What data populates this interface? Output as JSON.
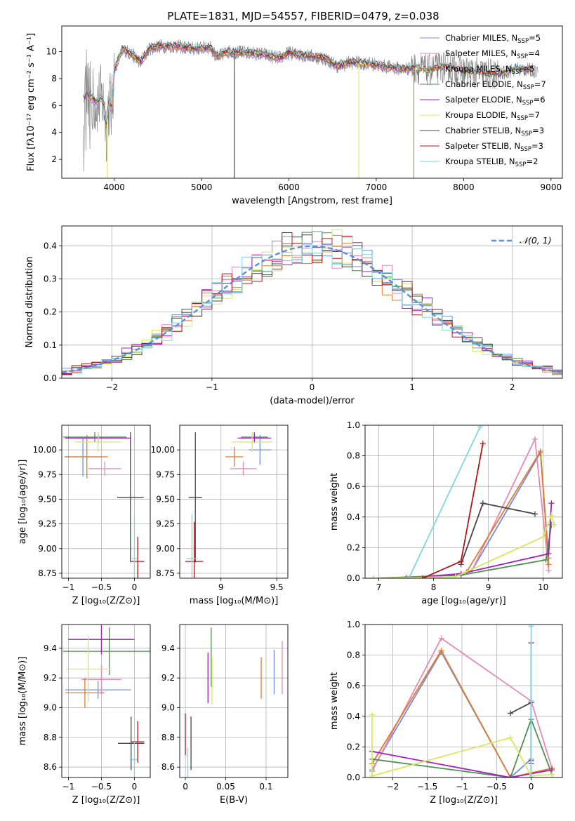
{
  "title": "PLATE=1831, MJD=54557, FIBERID=0479, z=0.038",
  "colors": {
    "Chabrier MILES": "#6f8fe8",
    "Salpeter MILES": "#e68ab8",
    "Kroupa MILES": "#e07b2a",
    "Chabrier ELODIE": "#4f8f4f",
    "Salpeter ELODIE": "#a020c0",
    "Kroupa ELODIE": "#d8e85a",
    "Chabrier STELIB": "#474747",
    "Salpeter STELIB": "#b01818",
    "Kroupa STELIB": "#7dd8e0",
    "gauss": "#5a8ed8"
  },
  "chart_data": [
    {
      "id": "spectrum",
      "type": "line",
      "xlabel": "wavelength [Angstrom, rest frame]",
      "ylabel": "Flux [fλ10⁻¹⁷ erg cm⁻² s⁻¹ A⁻¹]",
      "xlim": [
        3400,
        9130
      ],
      "ylim": [
        0.6,
        11.9
      ],
      "xticks": [
        4000,
        5000,
        6000,
        7000,
        8000,
        9000
      ],
      "yticks": [
        2,
        4,
        6,
        8,
        10
      ],
      "legend_position": "top-right",
      "legend": [
        {
          "label": "Chabrier MILES, N",
          "sub": "SSP",
          "eq": "=5",
          "color": "Chabrier MILES"
        },
        {
          "label": "Salpeter MILES, N",
          "sub": "SSP",
          "eq": "=4",
          "color": "Salpeter MILES"
        },
        {
          "label": "Kroupa MILES, N",
          "sub": "SSP",
          "eq": "=5",
          "color": "Kroupa MILES"
        },
        {
          "label": "Chabrier ELODIE, N",
          "sub": "SSP",
          "eq": "=7",
          "color": "Chabrier ELODIE"
        },
        {
          "label": "Salpeter ELODIE, N",
          "sub": "SSP",
          "eq": "=6",
          "color": "Salpeter ELODIE"
        },
        {
          "label": "Kroupa ELODIE, N",
          "sub": "SSP",
          "eq": "=7",
          "color": "Kroupa ELODIE"
        },
        {
          "label": "Chabrier STELIB, N",
          "sub": "SSP",
          "eq": "=3",
          "color": "Chabrier STELIB"
        },
        {
          "label": "Salpeter STELIB, N",
          "sub": "SSP",
          "eq": "=3",
          "color": "Salpeter STELIB"
        },
        {
          "label": "Kroupa STELIB, N",
          "sub": "SSP",
          "eq": "=2",
          "color": "Kroupa STELIB"
        }
      ],
      "model_x": [
        3650,
        3700,
        3750,
        3800,
        3850,
        3890,
        3910,
        3930,
        3950,
        3970,
        4000,
        4100,
        4200,
        4300,
        4400,
        4500,
        4700,
        4900,
        5100,
        5175,
        5300,
        5500,
        5700,
        5890,
        6000,
        6200,
        6400,
        6563,
        6700,
        6900,
        7100,
        7300,
        7420,
        7600,
        7800,
        8000,
        8200,
        8400,
        8600,
        8800
      ],
      "model_y": [
        6.6,
        6.9,
        6.5,
        6.2,
        6.6,
        5.9,
        4.2,
        5.8,
        6.4,
        5.4,
        8.6,
        10.2,
        9.8,
        9.2,
        10.2,
        10.4,
        10.4,
        10.2,
        10.3,
        9.6,
        10.0,
        9.9,
        9.8,
        9.5,
        9.9,
        9.7,
        9.5,
        8.9,
        9.2,
        9.1,
        8.9,
        8.7,
        8.8,
        8.6,
        8.9,
        8.5,
        8.4,
        8.3,
        8.7,
        8.6
      ],
      "data_cutoff": 8850,
      "drops": [
        {
          "x": 3920,
          "series": "Kroupa ELODIE"
        },
        {
          "x": 5375,
          "series": "Chabrier STELIB"
        },
        {
          "x": 6800,
          "series": "Kroupa ELODIE"
        },
        {
          "x": 7430,
          "series": "Kroupa MILES"
        }
      ]
    },
    {
      "id": "residuals",
      "type": "histogram",
      "xlabel": "(data-model)/error",
      "ylabel": "Normed distribution",
      "xlim": [
        -2.5,
        2.5
      ],
      "ylim": [
        0,
        0.46
      ],
      "xticks": [
        -2,
        -1,
        0,
        1,
        2
      ],
      "yticks": [
        0.0,
        0.1,
        0.2,
        0.3,
        0.4
      ],
      "bin_width": 0.1,
      "legend_position": "top-right",
      "gauss_label": "𝒩(0, 1)"
    },
    {
      "id": "age_vs_Z",
      "type": "errorbar",
      "xlabel": "Z [log₁₀(Z/Z⊙)]",
      "ylabel": "age  [log₁₀(age/yr)]",
      "xlim": [
        -1.1,
        0.24
      ],
      "ylim": [
        8.7,
        10.25
      ],
      "xticks": [
        -1.0,
        -0.5,
        0.0
      ],
      "yticks": [
        8.75,
        9.0,
        9.25,
        9.5,
        9.75,
        10.0
      ],
      "points": [
        {
          "series": "Chabrier MILES",
          "x": -0.78,
          "xerr": 0.28,
          "y": 9.93,
          "yerr": 0.2
        },
        {
          "series": "Salpeter MILES",
          "x": -0.45,
          "xerr": 0.25,
          "y": 9.81,
          "yerr": 0.07
        },
        {
          "series": "Kroupa MILES",
          "x": -0.72,
          "xerr": 0.32,
          "y": 9.93,
          "yerr": 0.22
        },
        {
          "series": "Chabrier ELODIE",
          "x": -0.6,
          "xerr": 0.48,
          "y": 10.13,
          "yerr": 0.05
        },
        {
          "series": "Salpeter ELODIE",
          "x": -0.55,
          "xerr": 0.5,
          "y": 10.12,
          "yerr": 0.05
        },
        {
          "series": "Kroupa ELODIE",
          "x": -0.55,
          "xerr": 0.35,
          "y": 10.08,
          "yerr": 0.1
        },
        {
          "series": "Chabrier STELIB",
          "x": -0.06,
          "xerr": 0.2,
          "y": 9.52,
          "yerr": 0.66
        },
        {
          "series": "Salpeter STELIB",
          "x": 0.05,
          "xerr": 0.1,
          "y": 8.87,
          "yerr": 0.25
        },
        {
          "series": "Kroupa STELIB",
          "x": 0.0,
          "xerr": 0.04,
          "y": 8.9,
          "yerr": 0.45
        }
      ]
    },
    {
      "id": "age_vs_mass",
      "type": "errorbar",
      "xlabel": "mass [log₁₀(M/M⊙)]",
      "ylabel": "",
      "xlim": [
        8.63,
        9.6
      ],
      "ylim": [
        8.7,
        10.25
      ],
      "xticks": [
        9.0,
        9.5
      ],
      "yticks": [
        8.75,
        9.0,
        9.25,
        9.5,
        9.75,
        10.0
      ],
      "points": [
        {
          "series": "Chabrier MILES",
          "x": 9.35,
          "xerr": 0.1,
          "y": 10.0,
          "yerr": 0.15
        },
        {
          "series": "Salpeter MILES",
          "x": 9.2,
          "xerr": 0.12,
          "y": 9.81,
          "yerr": 0.07
        },
        {
          "series": "Kroupa MILES",
          "x": 9.12,
          "xerr": 0.08,
          "y": 9.93,
          "yerr": 0.1
        },
        {
          "series": "Chabrier ELODIE",
          "x": 9.3,
          "xerr": 0.12,
          "y": 10.13,
          "yerr": 0.05
        },
        {
          "series": "Salpeter ELODIE",
          "x": 9.3,
          "xerr": 0.15,
          "y": 10.12,
          "yerr": 0.05
        },
        {
          "series": "Kroupa ELODIE",
          "x": 9.28,
          "xerr": 0.18,
          "y": 10.08,
          "yerr": 0.1
        },
        {
          "series": "Chabrier STELIB",
          "x": 8.77,
          "xerr": 0.06,
          "y": 9.52,
          "yerr": 0.66
        },
        {
          "series": "Salpeter STELIB",
          "x": 8.76,
          "xerr": 0.08,
          "y": 8.87,
          "yerr": 0.4
        },
        {
          "series": "Kroupa STELIB",
          "x": 8.74,
          "xerr": 0.05,
          "y": 8.9,
          "yerr": 0.45
        }
      ]
    },
    {
      "id": "weight_vs_age",
      "type": "line",
      "xlabel": "age  [log₁₀(age/yr)]",
      "ylabel": "mass weight",
      "xlim": [
        6.75,
        10.35
      ],
      "ylim": [
        0,
        1
      ],
      "xticks": [
        7,
        8,
        9,
        10
      ],
      "yticks": [
        0.0,
        0.2,
        0.4,
        0.6,
        0.8,
        1.0
      ],
      "series": [
        {
          "series": "Chabrier MILES",
          "x": [
            8.7,
            9.95,
            10.1
          ],
          "y": [
            0.05,
            0.82,
            0.13
          ]
        },
        {
          "series": "Salpeter MILES",
          "x": [
            8.7,
            9.85,
            10.1
          ],
          "y": [
            0.05,
            0.91,
            0.05
          ]
        },
        {
          "series": "Kroupa MILES",
          "x": [
            8.6,
            9.95,
            10.1
          ],
          "y": [
            0.04,
            0.83,
            0.09
          ]
        },
        {
          "series": "Chabrier ELODIE",
          "x": [
            6.9,
            8.5,
            10.05,
            10.15
          ],
          "y": [
            0.0,
            0.02,
            0.12,
            0.35
          ]
        },
        {
          "series": "Salpeter ELODIE",
          "x": [
            7.5,
            8.5,
            10.1,
            10.15
          ],
          "y": [
            0.0,
            0.03,
            0.16,
            0.49
          ]
        },
        {
          "series": "Kroupa ELODIE",
          "x": [
            6.9,
            8.4,
            10.0,
            10.15,
            10.2
          ],
          "y": [
            0.0,
            0.01,
            0.27,
            0.41,
            0.35
          ]
        },
        {
          "series": "Chabrier STELIB",
          "x": [
            8.5,
            8.9,
            9.85
          ],
          "y": [
            0.09,
            0.49,
            0.42
          ]
        },
        {
          "series": "Salpeter STELIB",
          "x": [
            7.8,
            8.5,
            8.9
          ],
          "y": [
            0.0,
            0.11,
            0.88
          ]
        },
        {
          "series": "Kroupa STELIB",
          "x": [
            7.55,
            8.85
          ],
          "y": [
            0.0,
            0.99
          ]
        }
      ]
    },
    {
      "id": "mass_vs_Z",
      "type": "errorbar",
      "xlabel": "Z [log₁₀(Z/Z⊙)]",
      "ylabel": "mass [log₁₀(M/M⊙)]",
      "xlim": [
        -1.1,
        0.24
      ],
      "ylim": [
        8.53,
        9.56
      ],
      "xticks": [
        -1.0,
        -0.5,
        0.0
      ],
      "yticks": [
        8.6,
        8.8,
        9.0,
        9.2,
        9.4
      ],
      "points": [
        {
          "series": "Chabrier MILES",
          "x": -0.55,
          "xerr": 0.5,
          "y": 9.12,
          "yerr": 0.06
        },
        {
          "series": "Salpeter MILES",
          "x": -0.5,
          "xerr": 0.3,
          "y": 9.19,
          "yerr": 0.1
        },
        {
          "series": "Kroupa MILES",
          "x": -0.75,
          "xerr": 0.3,
          "y": 9.1,
          "yerr": 0.1
        },
        {
          "series": "Chabrier ELODIE",
          "x": -0.38,
          "xerr": 0.7,
          "y": 9.38,
          "yerr": 0.16
        },
        {
          "series": "Salpeter ELODIE",
          "x": -0.5,
          "xerr": 0.5,
          "y": 9.46,
          "yerr": 0.1
        },
        {
          "series": "Kroupa ELODIE",
          "x": -0.7,
          "xerr": 0.33,
          "y": 9.26,
          "yerr": 0.22
        },
        {
          "series": "Chabrier STELIB",
          "x": -0.05,
          "xerr": 0.2,
          "y": 8.76,
          "yerr": 0.18
        },
        {
          "series": "Salpeter STELIB",
          "x": 0.05,
          "xerr": 0.1,
          "y": 8.77,
          "yerr": 0.14
        },
        {
          "series": "Kroupa STELIB",
          "x": 0.0,
          "xerr": 0.04,
          "y": 8.65,
          "yerr": 0.12
        }
      ]
    },
    {
      "id": "mass_vs_ebv",
      "type": "errorbar",
      "xlabel": "E(B-V)",
      "ylabel": "",
      "xlim": [
        -0.007,
        0.127
      ],
      "ylim": [
        8.53,
        9.56
      ],
      "xticks": [
        0.0,
        0.05,
        0.1
      ],
      "yticks": [
        8.6,
        8.8,
        9.0,
        9.2,
        9.4
      ],
      "points": [
        {
          "series": "Chabrier MILES",
          "x": 0.11,
          "xerr": 0,
          "y": 9.24,
          "yerr": 0.15
        },
        {
          "series": "Salpeter MILES",
          "x": 0.12,
          "xerr": 0,
          "y": 9.27,
          "yerr": 0.18
        },
        {
          "series": "Kroupa MILES",
          "x": 0.094,
          "xerr": 0,
          "y": 9.2,
          "yerr": 0.14
        },
        {
          "series": "Chabrier ELODIE",
          "x": 0.032,
          "xerr": 0,
          "y": 9.34,
          "yerr": 0.2
        },
        {
          "series": "Salpeter ELODIE",
          "x": 0.028,
          "xerr": 0,
          "y": 9.2,
          "yerr": 0.17
        },
        {
          "series": "Kroupa ELODIE",
          "x": 0.033,
          "xerr": 0,
          "y": 9.18,
          "yerr": 0.16
        },
        {
          "series": "Chabrier STELIB",
          "x": 0.007,
          "xerr": 0,
          "y": 8.76,
          "yerr": 0.18
        },
        {
          "series": "Salpeter STELIB",
          "x": 0.0,
          "xerr": 0,
          "y": 8.82,
          "yerr": 0.14
        },
        {
          "series": "Kroupa STELIB",
          "x": 0.003,
          "xerr": 0,
          "y": 8.63,
          "yerr": 0.1
        }
      ]
    },
    {
      "id": "weight_vs_Z",
      "type": "line",
      "xlabel": "Z [log₁₀(Z/Z⊙)]",
      "ylabel": "mass weight",
      "xlim": [
        -2.4,
        0.45
      ],
      "ylim": [
        0,
        1
      ],
      "xticks": [
        -2.0,
        -1.5,
        -1.0,
        -0.5,
        0.0
      ],
      "yticks": [
        0.0,
        0.2,
        0.4,
        0.6,
        0.8,
        1.0
      ],
      "series": [
        {
          "series": "Chabrier MILES",
          "x": [
            -2.3,
            -1.3,
            -0.3,
            0.0
          ],
          "y": [
            0.05,
            0.82,
            0.0,
            0.12
          ]
        },
        {
          "series": "Salpeter MILES",
          "x": [
            -2.3,
            -1.3,
            0.0,
            0.3
          ],
          "y": [
            0.04,
            0.91,
            0.5,
            0.06
          ]
        },
        {
          "series": "Kroupa MILES",
          "x": [
            -2.3,
            -1.3,
            -0.3,
            0.3
          ],
          "y": [
            0.09,
            0.83,
            0.0,
            0.06
          ]
        },
        {
          "series": "Chabrier ELODIE",
          "x": [
            -2.3,
            -0.3,
            0.0,
            0.3
          ],
          "y": [
            0.12,
            0.0,
            0.38,
            0.02
          ]
        },
        {
          "series": "Salpeter ELODIE",
          "x": [
            -2.3,
            -0.3,
            0.3
          ],
          "y": [
            0.17,
            0.0,
            0.05
          ]
        },
        {
          "series": "Kroupa ELODIE",
          "x": [
            -2.3,
            -2.3,
            -0.3,
            0.0,
            0.3
          ],
          "y": [
            0.41,
            0.01,
            0.26,
            0.01,
            0.02
          ]
        },
        {
          "series": "Chabrier STELIB",
          "x": [
            -0.3,
            0.0,
            0.0
          ],
          "y": [
            0.42,
            0.49,
            0.09
          ]
        },
        {
          "series": "Salpeter STELIB",
          "x": [
            0.0,
            0.0,
            0.0
          ],
          "y": [
            0.88,
            0.11,
            0.0
          ]
        },
        {
          "series": "Kroupa STELIB",
          "x": [
            0.0,
            0.0
          ],
          "y": [
            0.99,
            0.0
          ]
        }
      ]
    }
  ]
}
